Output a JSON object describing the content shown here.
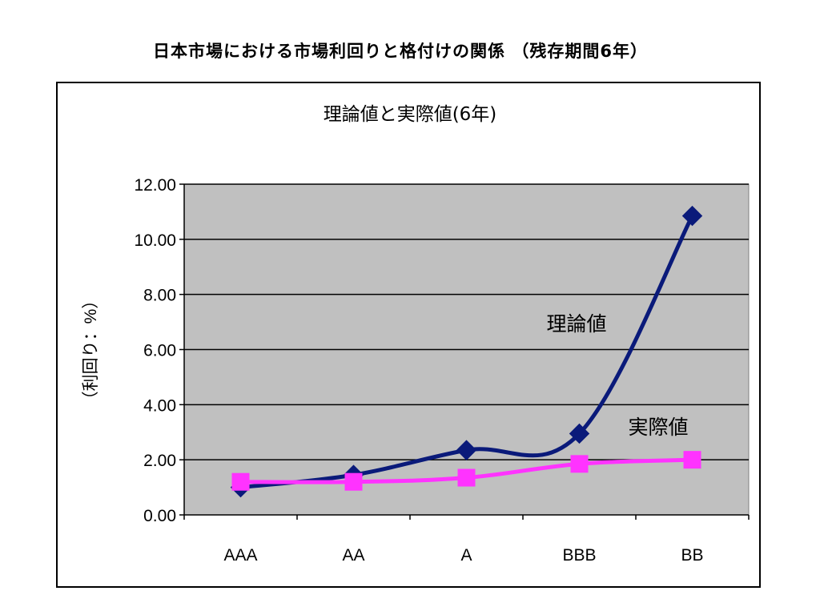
{
  "page": {
    "title": "日本市場における市場利回りと格付けの関係 （残存期間6年）"
  },
  "chart_data": {
    "type": "line",
    "title": "理論値と実際値(6年)",
    "ylabel": "（利回り：%）",
    "xlabel": "",
    "categories": [
      "AAA",
      "AA",
      "A",
      "BBB",
      "BB"
    ],
    "ylim": [
      0,
      12
    ],
    "yticks": [
      "0.00",
      "2.00",
      "4.00",
      "6.00",
      "8.00",
      "10.00",
      "12.00"
    ],
    "plot_background": "#c0c0c0",
    "grid": true,
    "legend": "none",
    "series": [
      {
        "name": "理論値",
        "values": [
          1.0,
          1.45,
          2.35,
          2.95,
          10.85
        ],
        "color": "#0a1a7a",
        "marker": "diamond"
      },
      {
        "name": "実際値",
        "values": [
          1.2,
          1.2,
          1.35,
          1.85,
          2.0
        ],
        "color": "#ff33ff",
        "marker": "square"
      }
    ],
    "annotations": [
      {
        "text": "理論値",
        "series": "理論値"
      },
      {
        "text": "実際値",
        "series": "実際値"
      }
    ]
  }
}
